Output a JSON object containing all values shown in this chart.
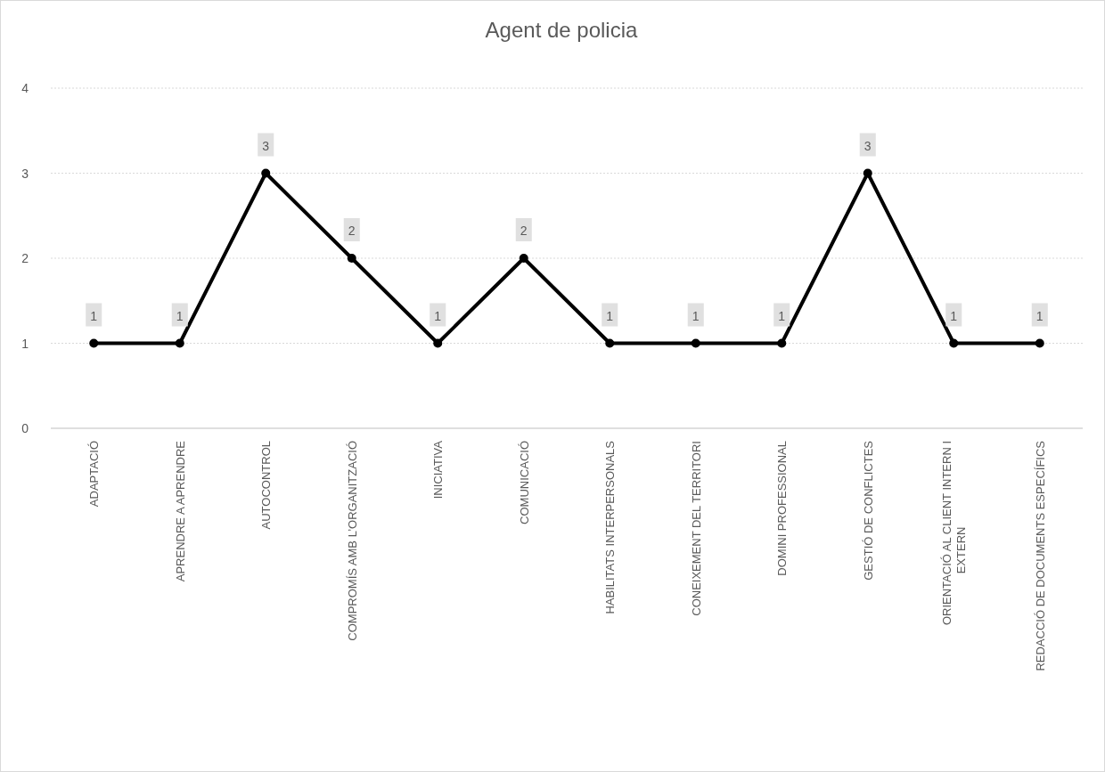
{
  "chart_data": {
    "type": "line",
    "title": "Agent de policia",
    "categories": [
      "ADAPTACIÓ",
      "APRENDRE A APRENDRE",
      "AUTOCONTROL",
      "COMPROMÍS AMB L’ORGANITZACIÓ",
      "INICIATIVA",
      "COMUNICACIÓ",
      "HABILITATS INTERPERSONALS",
      "CONEIXEMENT DEL TERRITORI",
      "DOMINI PROFESSIONAL",
      "GESTIÓ DE CONFLICTES",
      "ORIENTACIÓ AL CLIENT INTERN I EXTERN",
      "REDACCIÓ DE DOCUMENTS ESPECÍFICS"
    ],
    "series": [
      {
        "color": "#000000",
        "values": [
          1,
          1,
          3,
          2,
          1,
          2,
          1,
          1,
          1,
          3,
          1,
          1
        ]
      }
    ],
    "ylim": [
      0,
      4
    ],
    "yticks": [
      0,
      1,
      2,
      3,
      4
    ],
    "grid": "y",
    "marker": "circle",
    "line_style": "solid",
    "data_labels": true
  }
}
